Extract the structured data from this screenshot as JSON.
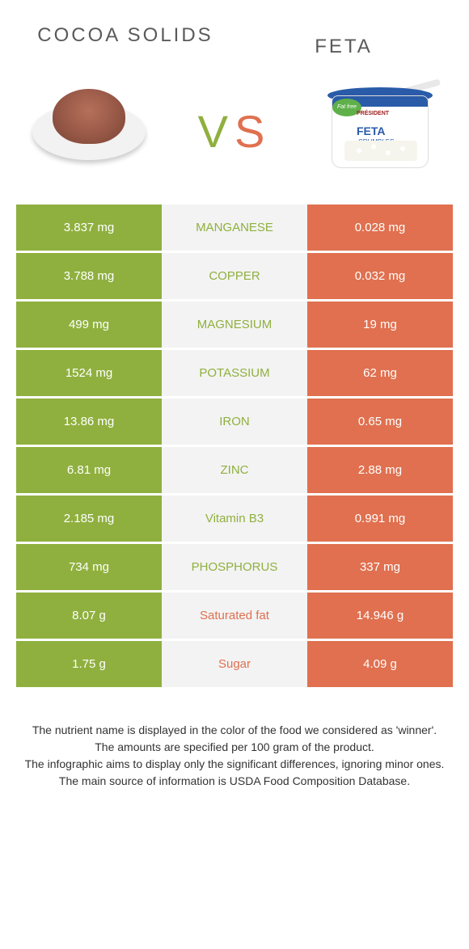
{
  "colors": {
    "green": "#8fb03e",
    "orange": "#e0704f",
    "mid_bg": "#f3f3f3",
    "text_dark": "#333333",
    "title_gray": "#5a5a5a"
  },
  "header": {
    "left_title": "COCOA SOLIDS",
    "right_title": "FETA",
    "vs_v": "V",
    "vs_s": "S"
  },
  "feta_pkg": {
    "brand": "PRÉSIDENT",
    "label": "FETA",
    "sublabel": "CRUMBLES",
    "badge": "Fat free"
  },
  "rows": [
    {
      "left": "3.837 mg",
      "mid": "MANGANESE",
      "right": "0.028 mg",
      "winner": "left"
    },
    {
      "left": "3.788 mg",
      "mid": "COPPER",
      "right": "0.032 mg",
      "winner": "left"
    },
    {
      "left": "499 mg",
      "mid": "MAGNESIUM",
      "right": "19 mg",
      "winner": "left"
    },
    {
      "left": "1524 mg",
      "mid": "POTASSIUM",
      "right": "62 mg",
      "winner": "left"
    },
    {
      "left": "13.86 mg",
      "mid": "IRON",
      "right": "0.65 mg",
      "winner": "left"
    },
    {
      "left": "6.81 mg",
      "mid": "ZINC",
      "right": "2.88 mg",
      "winner": "left"
    },
    {
      "left": "2.185 mg",
      "mid": "Vitamin B3",
      "right": "0.991 mg",
      "winner": "left"
    },
    {
      "left": "734 mg",
      "mid": "PHOSPHORUS",
      "right": "337 mg",
      "winner": "left"
    },
    {
      "left": "8.07 g",
      "mid": "Saturated fat",
      "right": "14.946 g",
      "winner": "right"
    },
    {
      "left": "1.75 g",
      "mid": "Sugar",
      "right": "4.09 g",
      "winner": "right"
    }
  ],
  "footnotes": [
    "The nutrient name is displayed in the color of the food we considered as 'winner'.",
    "The amounts are specified per 100 gram of the product.",
    "The infographic aims to display only the significant differences, ignoring minor ones.",
    "The main source of information is USDA Food Composition Database."
  ]
}
